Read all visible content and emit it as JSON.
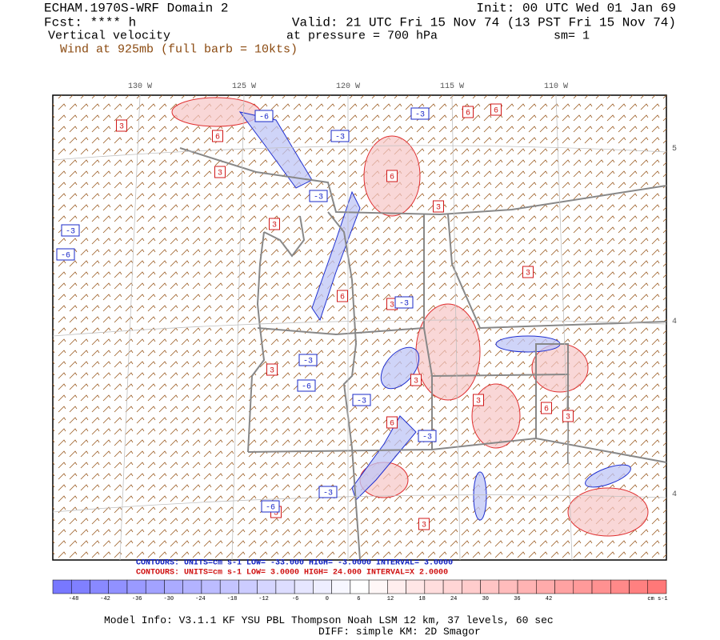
{
  "header": {
    "title": "ECHAM.1970S-WRF Domain 2",
    "init": "Init: 00 UTC Wed 01 Jan 69",
    "fcst": "Fcst: **** h",
    "valid": "Valid: 21 UTC Fri 15 Nov 74 (13 PST Fri 15 Nov 74)",
    "field": "Vertical velocity",
    "pressure": "at pressure =  700 hPa",
    "smoothing": "sm= 1",
    "wind": "Wind at 925mb (full barb = 10kts)"
  },
  "map": {
    "lon_labels": [
      "130 W",
      "125 W",
      "120 W",
      "115 W",
      "110 W"
    ],
    "lat_labels": [
      "5",
      "4",
      "4"
    ],
    "contour_labels": [
      "-6",
      "3",
      "6",
      "3",
      "-3",
      "-3",
      "-3",
      "6",
      "3",
      "-3",
      "-6",
      "3",
      "6",
      "3",
      "-3",
      "6",
      "3",
      "-3",
      "-6",
      "3",
      "3",
      "-3",
      "6",
      "3",
      "-3",
      "3",
      "6",
      "-6",
      "3",
      "-3",
      "3",
      "6"
    ]
  },
  "contours": {
    "blue": "CONTOURS:  UNITS=cm s-1  LOW= -33.000    HIGH= -3.0000     INTERVAL= 3.0000",
    "red": "CONTOURS:  UNITS=cm s-1  LOW=  3.0000    HIGH=  24.000     INTERVAL=X  2.0000"
  },
  "colorbar": {
    "labels": [
      -48,
      -42,
      -36,
      -30,
      -24,
      -18,
      -12,
      -6,
      0,
      6,
      12,
      18,
      24,
      30,
      36,
      42
    ],
    "units": "cm s-1"
  },
  "footer": {
    "model": "Model Info: V3.1.1    KF     YSU PBL   Thompson    Noah LSM   12 km,    37 levels,    60 sec",
    "diff": "DIFF: simple KM: 2D Smagor"
  }
}
